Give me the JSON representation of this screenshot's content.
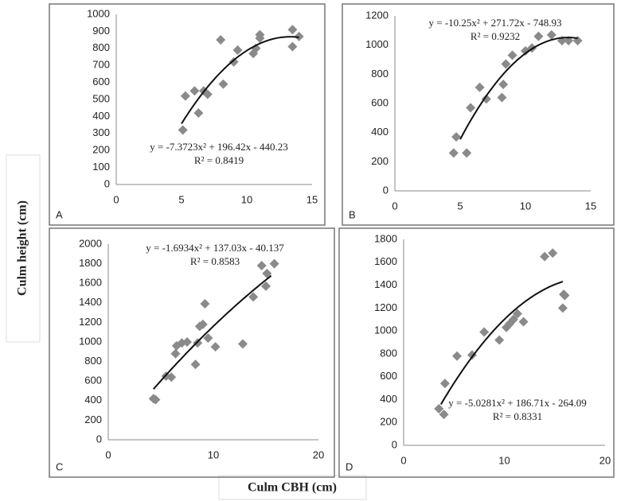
{
  "ylabel": "Culm height (cm)",
  "xlabel": "Culm CBH (cm)",
  "chart_data": [
    {
      "type": "scatter",
      "panel": "A",
      "equation": "y = -7.3723x² + 196.42x - 440.23",
      "r2": "R² = 0.8419",
      "color": "#8a8a8a",
      "fit": {
        "a": -7.3723,
        "b": 196.42,
        "c": -440.23,
        "x": [
          5,
          14
        ]
      },
      "x": [
        5.1,
        5.3,
        6,
        6.3,
        6.7,
        7,
        8,
        8.2,
        9,
        9.3,
        10.5,
        10.7,
        11,
        11,
        13.5,
        13.5,
        14
      ],
      "values": [
        320,
        520,
        550,
        420,
        550,
        530,
        850,
        590,
        720,
        790,
        770,
        800,
        880,
        860,
        910,
        810,
        870
      ],
      "xlim": [
        0,
        15
      ],
      "xticks": [
        0,
        5,
        10,
        15
      ],
      "ylim": [
        0,
        1000
      ],
      "yticks": [
        0,
        100,
        200,
        300,
        400,
        500,
        600,
        700,
        800,
        900,
        1000
      ]
    },
    {
      "type": "scatter",
      "panel": "B",
      "equation": "y = -10.25x² + 271.72x - 748.93",
      "r2": "R² = 0.9232",
      "color": "#8a8a8a",
      "fit": {
        "a": -10.25,
        "b": 271.72,
        "c": -748.93,
        "x": [
          5,
          14
        ]
      },
      "x": [
        4.5,
        4.7,
        5.5,
        5.8,
        6.5,
        7,
        8.2,
        8.3,
        8.5,
        9,
        10,
        10.5,
        11,
        12,
        12.8,
        13.3,
        14
      ],
      "values": [
        260,
        370,
        260,
        570,
        710,
        630,
        640,
        730,
        870,
        930,
        960,
        980,
        1060,
        1070,
        1030,
        1030,
        1030
      ],
      "xlim": [
        0,
        15
      ],
      "xticks": [
        0,
        5,
        10,
        15
      ],
      "ylim": [
        0,
        1200
      ],
      "yticks": [
        0,
        200,
        400,
        600,
        800,
        1000,
        1200
      ]
    },
    {
      "type": "scatter",
      "panel": "C",
      "equation": "y = -1.6934x² + 137.03x - 40.137",
      "r2": "R² = 0.8583",
      "color": "#8a8a8a",
      "fit": {
        "a": -1.6934,
        "b": 137.03,
        "c": -40.137,
        "x": [
          4.3,
          15.5
        ]
      },
      "x": [
        4.3,
        4.5,
        5.5,
        6,
        6.4,
        6.5,
        7,
        7.5,
        8.3,
        8.5,
        8.7,
        9,
        9.2,
        9.5,
        10.2,
        12.8,
        13.8,
        14.6,
        15,
        15.1,
        15.8
      ],
      "values": [
        420,
        410,
        650,
        640,
        880,
        960,
        990,
        1000,
        770,
        990,
        1160,
        1180,
        1390,
        1040,
        950,
        980,
        1460,
        1780,
        1570,
        1700,
        1800
      ],
      "xlim": [
        0,
        20
      ],
      "xticks": [
        0,
        10,
        20
      ],
      "ylim": [
        0,
        2000
      ],
      "yticks": [
        0,
        200,
        400,
        600,
        800,
        1000,
        1200,
        1400,
        1600,
        1800,
        2000
      ]
    },
    {
      "type": "scatter",
      "panel": "D",
      "equation": "y = -5.0281x² + 186.71x - 264.09",
      "r2": "R² = 0.8331",
      "color": "#8a8a8a",
      "fit": {
        "a": -5.0281,
        "b": 186.71,
        "c": -264.09,
        "x": [
          3.7,
          15.8
        ]
      },
      "x": [
        3.5,
        4,
        4.1,
        5.3,
        6.8,
        8,
        9.5,
        10.2,
        10.5,
        10.9,
        11.3,
        11.9,
        14,
        14.8,
        15.8,
        15.9,
        16
      ],
      "values": [
        320,
        270,
        540,
        780,
        790,
        990,
        920,
        1030,
        1060,
        1100,
        1150,
        1080,
        1650,
        1680,
        1200,
        1320,
        1310
      ],
      "xlim": [
        0,
        20
      ],
      "xticks": [
        0,
        10,
        20
      ],
      "ylim": [
        0,
        1800
      ],
      "yticks": [
        0,
        200,
        400,
        600,
        800,
        1000,
        1200,
        1400,
        1600,
        1800
      ]
    }
  ]
}
